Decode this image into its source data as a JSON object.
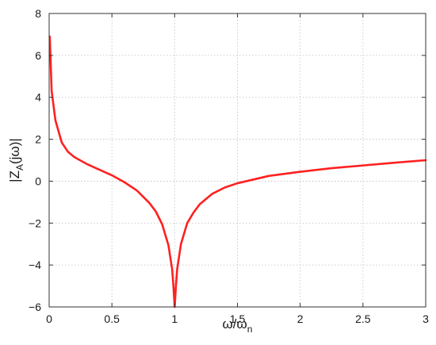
{
  "chart_data": {
    "type": "line",
    "title": "",
    "xlabel": {
      "main": "ω/ω",
      "sub": "n"
    },
    "ylabel": {
      "pre": "|Z",
      "sub": "A",
      "post": "(jω)|"
    },
    "xlim": [
      0,
      3
    ],
    "ylim": [
      -6,
      8
    ],
    "xticks": [
      0,
      0.5,
      1,
      1.5,
      2,
      2.5,
      3
    ],
    "xtick_labels": [
      "0",
      "0.5",
      "1",
      "1.5",
      "2",
      "2.5",
      "3"
    ],
    "yticks": [
      -6,
      -4,
      -2,
      0,
      2,
      4,
      6,
      8
    ],
    "ytick_labels": [
      "−6",
      "−4",
      "−2",
      "0",
      "2",
      "4",
      "6",
      "8"
    ],
    "grid": true,
    "series": [
      {
        "color": "#ff2020",
        "x": [
          0.005,
          0.02,
          0.05,
          0.1,
          0.15,
          0.2,
          0.3,
          0.4,
          0.5,
          0.6,
          0.7,
          0.8,
          0.85,
          0.9,
          0.95,
          0.98,
          0.99,
          1.0,
          1.01,
          1.02,
          1.05,
          1.1,
          1.15,
          1.2,
          1.3,
          1.4,
          1.5,
          1.75,
          2.0,
          2.25,
          2.5,
          2.75,
          3.0
        ],
        "y": [
          6.9,
          4.3,
          2.9,
          1.85,
          1.4,
          1.15,
          0.82,
          0.55,
          0.28,
          -0.05,
          -0.45,
          -1.05,
          -1.45,
          -2.05,
          -3.05,
          -4.2,
          -5.0,
          -6.0,
          -5.0,
          -4.2,
          -3.0,
          -2.0,
          -1.5,
          -1.1,
          -0.6,
          -0.3,
          -0.1,
          0.25,
          0.45,
          0.62,
          0.75,
          0.88,
          1.0
        ]
      }
    ]
  }
}
